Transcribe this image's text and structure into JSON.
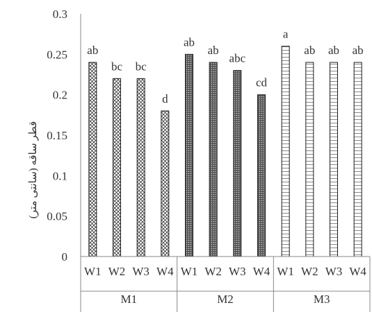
{
  "chart_data": {
    "type": "bar",
    "title": "",
    "xlabel": "",
    "ylabel": "قطر ساقه (سانتی متر)",
    "ylim": [
      0,
      0.3
    ],
    "yticks": [
      "0",
      "0.05",
      "0.1",
      "0.15",
      "0.2",
      "0.25",
      "0.3"
    ],
    "grid": false,
    "legend": "none",
    "groups": [
      {
        "name": "M1",
        "pattern": "crosshatch",
        "bars": [
          {
            "category": "W1",
            "value": 0.24,
            "label": "ab"
          },
          {
            "category": "W2",
            "value": 0.22,
            "label": "bc"
          },
          {
            "category": "W3",
            "value": 0.22,
            "label": "bc"
          },
          {
            "category": "W4",
            "value": 0.18,
            "label": "d"
          }
        ]
      },
      {
        "name": "M2",
        "pattern": "dots",
        "bars": [
          {
            "category": "W1",
            "value": 0.25,
            "label": "ab"
          },
          {
            "category": "W2",
            "value": 0.24,
            "label": "ab"
          },
          {
            "category": "W3",
            "value": 0.23,
            "label": "abc"
          },
          {
            "category": "W4",
            "value": 0.2,
            "label": "cd"
          }
        ]
      },
      {
        "name": "M3",
        "pattern": "grid",
        "bars": [
          {
            "category": "W1",
            "value": 0.26,
            "label": "a"
          },
          {
            "category": "W2",
            "value": 0.24,
            "label": "ab"
          },
          {
            "category": "W3",
            "value": 0.24,
            "label": "ab"
          },
          {
            "category": "W4",
            "value": 0.24,
            "label": "ab"
          }
        ]
      }
    ],
    "colors": {
      "axis": "#888888",
      "bar_stroke": "#1a1a1a",
      "pattern_dark": "#333333",
      "dots_fill": "#555555",
      "text": "#333333"
    }
  }
}
